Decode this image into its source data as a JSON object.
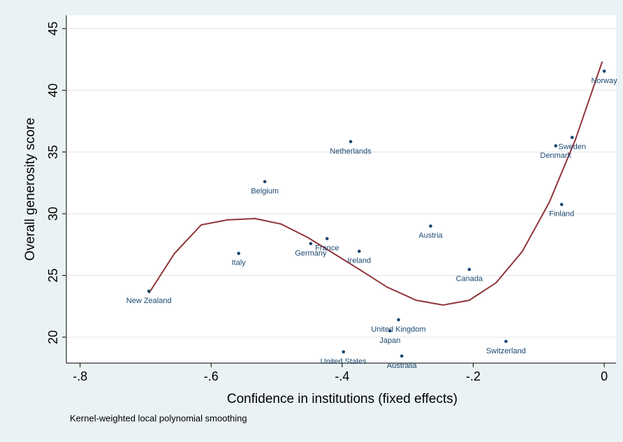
{
  "chart_data": {
    "type": "scatter",
    "x_label": "Confidence in institutions (fixed effects)",
    "y_label": "Overall generosity score",
    "note": "Kernel-weighted local polynomial smoothing",
    "xlim": [
      -0.821,
      0.018
    ],
    "ylim": [
      17.9,
      46.07
    ],
    "xticks": [
      {
        "value": -0.8,
        "label": "-.8"
      },
      {
        "value": -0.6,
        "label": "-.6"
      },
      {
        "value": -0.4,
        "label": "-.4"
      },
      {
        "value": -0.2,
        "label": "-.2"
      },
      0
    ],
    "yticks": [
      20,
      25,
      30,
      35,
      40,
      45
    ],
    "grid": true,
    "point_color": "#1a476f",
    "points": {
      "labels": [
        "Norway",
        "Sweden",
        "Denmark",
        "Finland",
        "Netherlands",
        "Belgium",
        "Austria",
        "France",
        "Germany",
        "Italy",
        "Ireland",
        "Canada",
        "New Zealand",
        "United Kingdom",
        "Japan",
        "Switzerland",
        "United States",
        "Australia"
      ],
      "x": [
        0.0,
        -0.049,
        -0.074,
        -0.065,
        -0.387,
        -0.518,
        -0.265,
        -0.423,
        -0.448,
        -0.558,
        -0.374,
        -0.206,
        -0.695,
        -0.314,
        -0.327,
        -0.15,
        -0.398,
        -0.309
      ],
      "y": [
        41.55,
        36.18,
        35.5,
        30.75,
        35.84,
        32.6,
        29.0,
        27.98,
        27.58,
        26.79,
        26.96,
        25.49,
        23.73,
        21.41,
        20.51,
        19.66,
        18.81,
        18.47
      ]
    },
    "smooth": {
      "color": "#90353b",
      "x": [
        -0.695,
        -0.656,
        -0.615,
        -0.575,
        -0.533,
        -0.493,
        -0.453,
        -0.413,
        -0.372,
        -0.332,
        -0.287,
        -0.246,
        -0.206,
        -0.165,
        -0.125,
        -0.084,
        -0.044,
        -0.003
      ],
      "y": [
        23.56,
        26.78,
        29.1,
        29.5,
        29.61,
        29.16,
        28.09,
        26.78,
        25.43,
        24.07,
        22.99,
        22.6,
        22.99,
        24.41,
        26.95,
        30.91,
        36.0,
        42.33
      ]
    }
  }
}
